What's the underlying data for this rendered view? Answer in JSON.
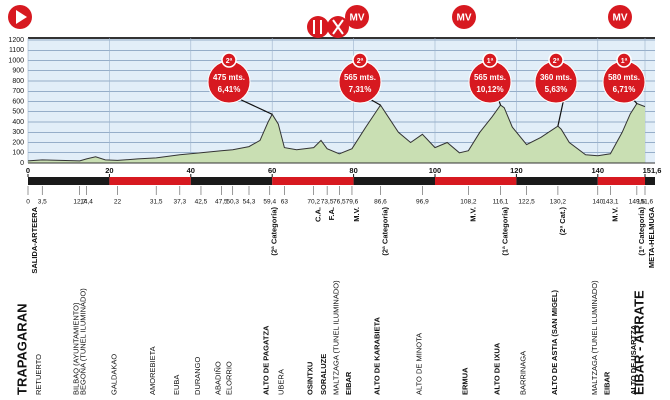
{
  "chart_data": {
    "type": "area",
    "color": "#c9dfb3",
    "ylim": [
      0,
      1200
    ],
    "yticks": [
      0,
      100,
      200,
      300,
      400,
      500,
      600,
      700,
      800,
      900,
      1000,
      1100,
      1200
    ],
    "xlim": [
      0,
      151.6
    ],
    "xticks": [
      0,
      20,
      40,
      60,
      80,
      100,
      120,
      140,
      {
        "value": 151.6,
        "label": "151,6"
      }
    ],
    "grid": true,
    "x": [
      0,
      3.5,
      8,
      12.7,
      14.4,
      16.6,
      19,
      22,
      27,
      31.5,
      37.3,
      42.5,
      47.5,
      50.3,
      54.3,
      57,
      59,
      60,
      61.5,
      63,
      66,
      70.2,
      72,
      73.5,
      76.5,
      79.6,
      83,
      86.6,
      88,
      91,
      94,
      96.9,
      100,
      103,
      106,
      108.2,
      111,
      114,
      116.1,
      117,
      119,
      122.5,
      126,
      130.2,
      131,
      133,
      137,
      140,
      143.1,
      146,
      148,
      149.6,
      151.6
    ],
    "values": [
      20,
      30,
      25,
      20,
      40,
      60,
      30,
      25,
      40,
      50,
      80,
      100,
      120,
      130,
      160,
      220,
      400,
      475,
      380,
      150,
      130,
      150,
      220,
      140,
      90,
      140,
      350,
      565,
      480,
      300,
      200,
      280,
      150,
      200,
      100,
      120,
      300,
      450,
      565,
      540,
      350,
      180,
      250,
      360,
      330,
      200,
      80,
      70,
      90,
      300,
      480,
      580,
      550
    ],
    "top_markers": [
      "MV",
      "MV",
      "MV"
    ],
    "climbs": [
      {
        "category": "2ª",
        "altitude": 475,
        "altitude_label": "475 mts.",
        "grade": "6,41%"
      },
      {
        "category": "2ª",
        "altitude": 565,
        "altitude_label": "565 mts.",
        "grade": "7,31%"
      },
      {
        "category": "1ª",
        "altitude": 565,
        "altitude_label": "565 mts.",
        "grade": "10,12%"
      },
      {
        "category": "2ª",
        "altitude": 360,
        "altitude_label": "360 mts.",
        "grade": "5,63%"
      },
      {
        "category": "1ª",
        "altitude": 580,
        "altitude_label": "580 mts.",
        "grade": "6,71%"
      }
    ],
    "waypoints": [
      {
        "km": 0,
        "name": "TRAPAGARAN",
        "note": "SALIDA-ARTEERA",
        "big": true
      },
      {
        "km": {
          "value": 3.5,
          "label": "3,5"
        },
        "name": "RETUERTO"
      },
      {
        "km": {
          "value": 12.7,
          "label": "12,7"
        },
        "name": "BILBAO (AYUNTAMIENTO)"
      },
      {
        "km": {
          "value": 14.4,
          "label": "14,4"
        },
        "name": "BEGOÑA (TUNEL ILUMINADO)"
      },
      {
        "km": 22,
        "name": "GALDAKAO"
      },
      {
        "km": {
          "value": 31.5,
          "label": "31,5"
        },
        "name": "AMOREBIETA"
      },
      {
        "km": {
          "value": 37.3,
          "label": "37,3"
        },
        "name": "EUBA"
      },
      {
        "km": {
          "value": 42.5,
          "label": "42,5"
        },
        "name": "DURANGO"
      },
      {
        "km": {
          "value": 47.5,
          "label": "47,5"
        },
        "name": "ABADIÑO"
      },
      {
        "km": {
          "value": 50.3,
          "label": "50,3"
        },
        "name": "ELORRIO"
      },
      {
        "km": {
          "value": 54.3,
          "label": "54,3"
        }
      },
      {
        "km": {
          "value": 59.4,
          "label": "59,4"
        },
        "name": "ALTO DE PAGATZA",
        "note": "(2ª Categoría)",
        "bold": true
      },
      {
        "km": 63,
        "name": "UBERA"
      },
      {
        "km": {
          "value": 70.2,
          "label": "70,2"
        },
        "name": "OSINTXU",
        "note": "C.A.",
        "bold": true
      },
      {
        "km": {
          "value": 73.5,
          "label": "73,5"
        },
        "name": "SORALUZE",
        "note": "F.A.",
        "bold": true
      },
      {
        "km": {
          "value": 76.5,
          "label": "76,5"
        },
        "name": "MALTZAGA (TUNEL ILUMINADO)"
      },
      {
        "km": {
          "value": 79.6,
          "label": "79,6"
        },
        "name": "EIBAR",
        "note": "M.V.",
        "bold": true
      },
      {
        "km": {
          "value": 86.6,
          "label": "86,6"
        },
        "name": "ALTO DE KARABIETA",
        "note": "(2ª Categoría)",
        "bold": true
      },
      {
        "km": {
          "value": 96.9,
          "label": "96,9"
        },
        "name": "ALTO DE MINOTA"
      },
      {
        "km": {
          "value": 108.2,
          "label": "108,2"
        },
        "name": "ERMUA",
        "note": "M.V.",
        "bold": true
      },
      {
        "km": {
          "value": 116.1,
          "label": "116,1"
        },
        "name": "ALTO DE IXUA",
        "note": "(1ª Categoría)",
        "bold": true
      },
      {
        "km": {
          "value": 122.5,
          "label": "122,5"
        },
        "name": "BARRINAGA"
      },
      {
        "km": {
          "value": 130.2,
          "label": "130,2"
        },
        "name": "ALTO DE ASTIA (SAN MIGEL)",
        "note": "(2ª Cat.)",
        "bold": true
      },
      {
        "km": 140,
        "name": "MALTZAGA (TUNEL ILUMINADO)"
      },
      {
        "km": {
          "value": 143.1,
          "label": "143,1"
        },
        "name": "EIBAR",
        "note": "M.V.",
        "bold": true
      },
      {
        "km": {
          "value": 149.6,
          "label": "149,6"
        },
        "name": "ALTO DE USARTZA",
        "note": "(1ª Categoría)",
        "bold": true
      },
      {
        "km": {
          "value": 151.6,
          "label": "151,6"
        },
        "name": "EIBAR - ARRATE",
        "note": "META-HELMUGA",
        "big": true
      }
    ]
  }
}
